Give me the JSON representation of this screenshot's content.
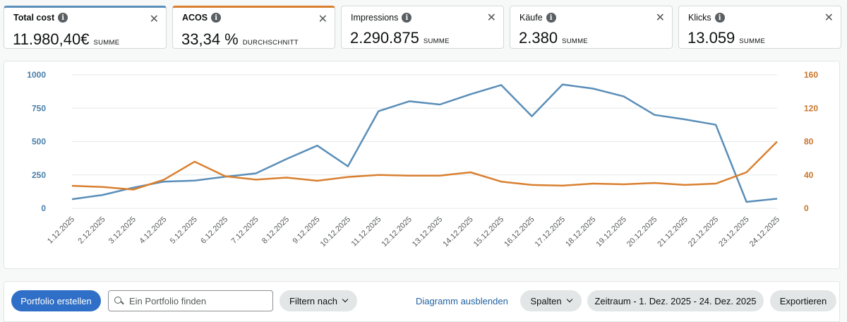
{
  "metrics": [
    {
      "title": "Total cost",
      "value": "11.980,40€",
      "unit": "SUMME",
      "accent": "#5a8eb8"
    },
    {
      "title": "ACOS",
      "value": "33,34 %",
      "unit": "DURCHSCHNITT",
      "accent": "#d98030"
    },
    {
      "title": "Impressions",
      "value": "2.290.875",
      "unit": "SUMME"
    },
    {
      "title": "Käufe",
      "value": "2.380",
      "unit": "SUMME"
    },
    {
      "title": "Klicks",
      "value": "13.059",
      "unit": "SUMME"
    }
  ],
  "icons": {
    "info": "info-icon",
    "close": "close-icon",
    "search": "search-icon",
    "chevron": "chevron-down-icon"
  },
  "close_glyph": "✕",
  "info_glyph": "i",
  "chart_data": {
    "type": "line",
    "categories": [
      "1.12.2025",
      "2.12.2025",
      "3.12.2025",
      "4.12.2025",
      "5.12.2025",
      "6.12.2025",
      "7.12.2025",
      "8.12.2025",
      "9.12.2025",
      "10.12.2025",
      "11.12.2025",
      "12.12.2025",
      "13.12.2025",
      "14.12.2025",
      "15.12.2025",
      "16.12.2025",
      "17.12.2025",
      "18.12.2025",
      "19.12.2025",
      "20.12.2025",
      "21.12.2025",
      "22.12.2025",
      "23.12.2025",
      "24.12.2025"
    ],
    "series": [
      {
        "name": "Total cost",
        "axis": "left",
        "color": "#5a8eb8",
        "values": [
          68,
          100,
          155,
          200,
          208,
          237,
          262,
          370,
          470,
          315,
          728,
          802,
          778,
          855,
          924,
          690,
          928,
          897,
          838,
          700,
          666,
          626,
          48,
          72
        ]
      },
      {
        "name": "ACOS",
        "axis": "right",
        "color": "#d98030",
        "values": [
          27,
          25.6,
          22.4,
          34.4,
          56,
          38.4,
          34.4,
          36.8,
          33,
          37.6,
          40,
          39.2,
          39.2,
          43.2,
          32,
          28,
          27.2,
          29.6,
          28.8,
          30.4,
          28,
          29.6,
          43.2,
          80
        ]
      }
    ],
    "y_left": {
      "min": 0,
      "max": 1000,
      "ticks": [
        0,
        250,
        500,
        750,
        1000
      ],
      "tick_color": "#4a7ea8"
    },
    "y_right": {
      "min": 0,
      "max": 160,
      "ticks": [
        0,
        40,
        80,
        120,
        160
      ],
      "tick_color": "#c9752b"
    },
    "grid": true
  },
  "toolbar": {
    "create_label": "Portfolio erstellen",
    "search_placeholder": "Ein Portfolio finden",
    "filter_label": "Filtern nach",
    "hide_chart_label": "Diagramm ausblenden",
    "columns_label": "Spalten",
    "date_range_label": "Zeitraum - 1. Dez. 2025 - 24. Dez. 2025",
    "export_label": "Exportieren"
  }
}
